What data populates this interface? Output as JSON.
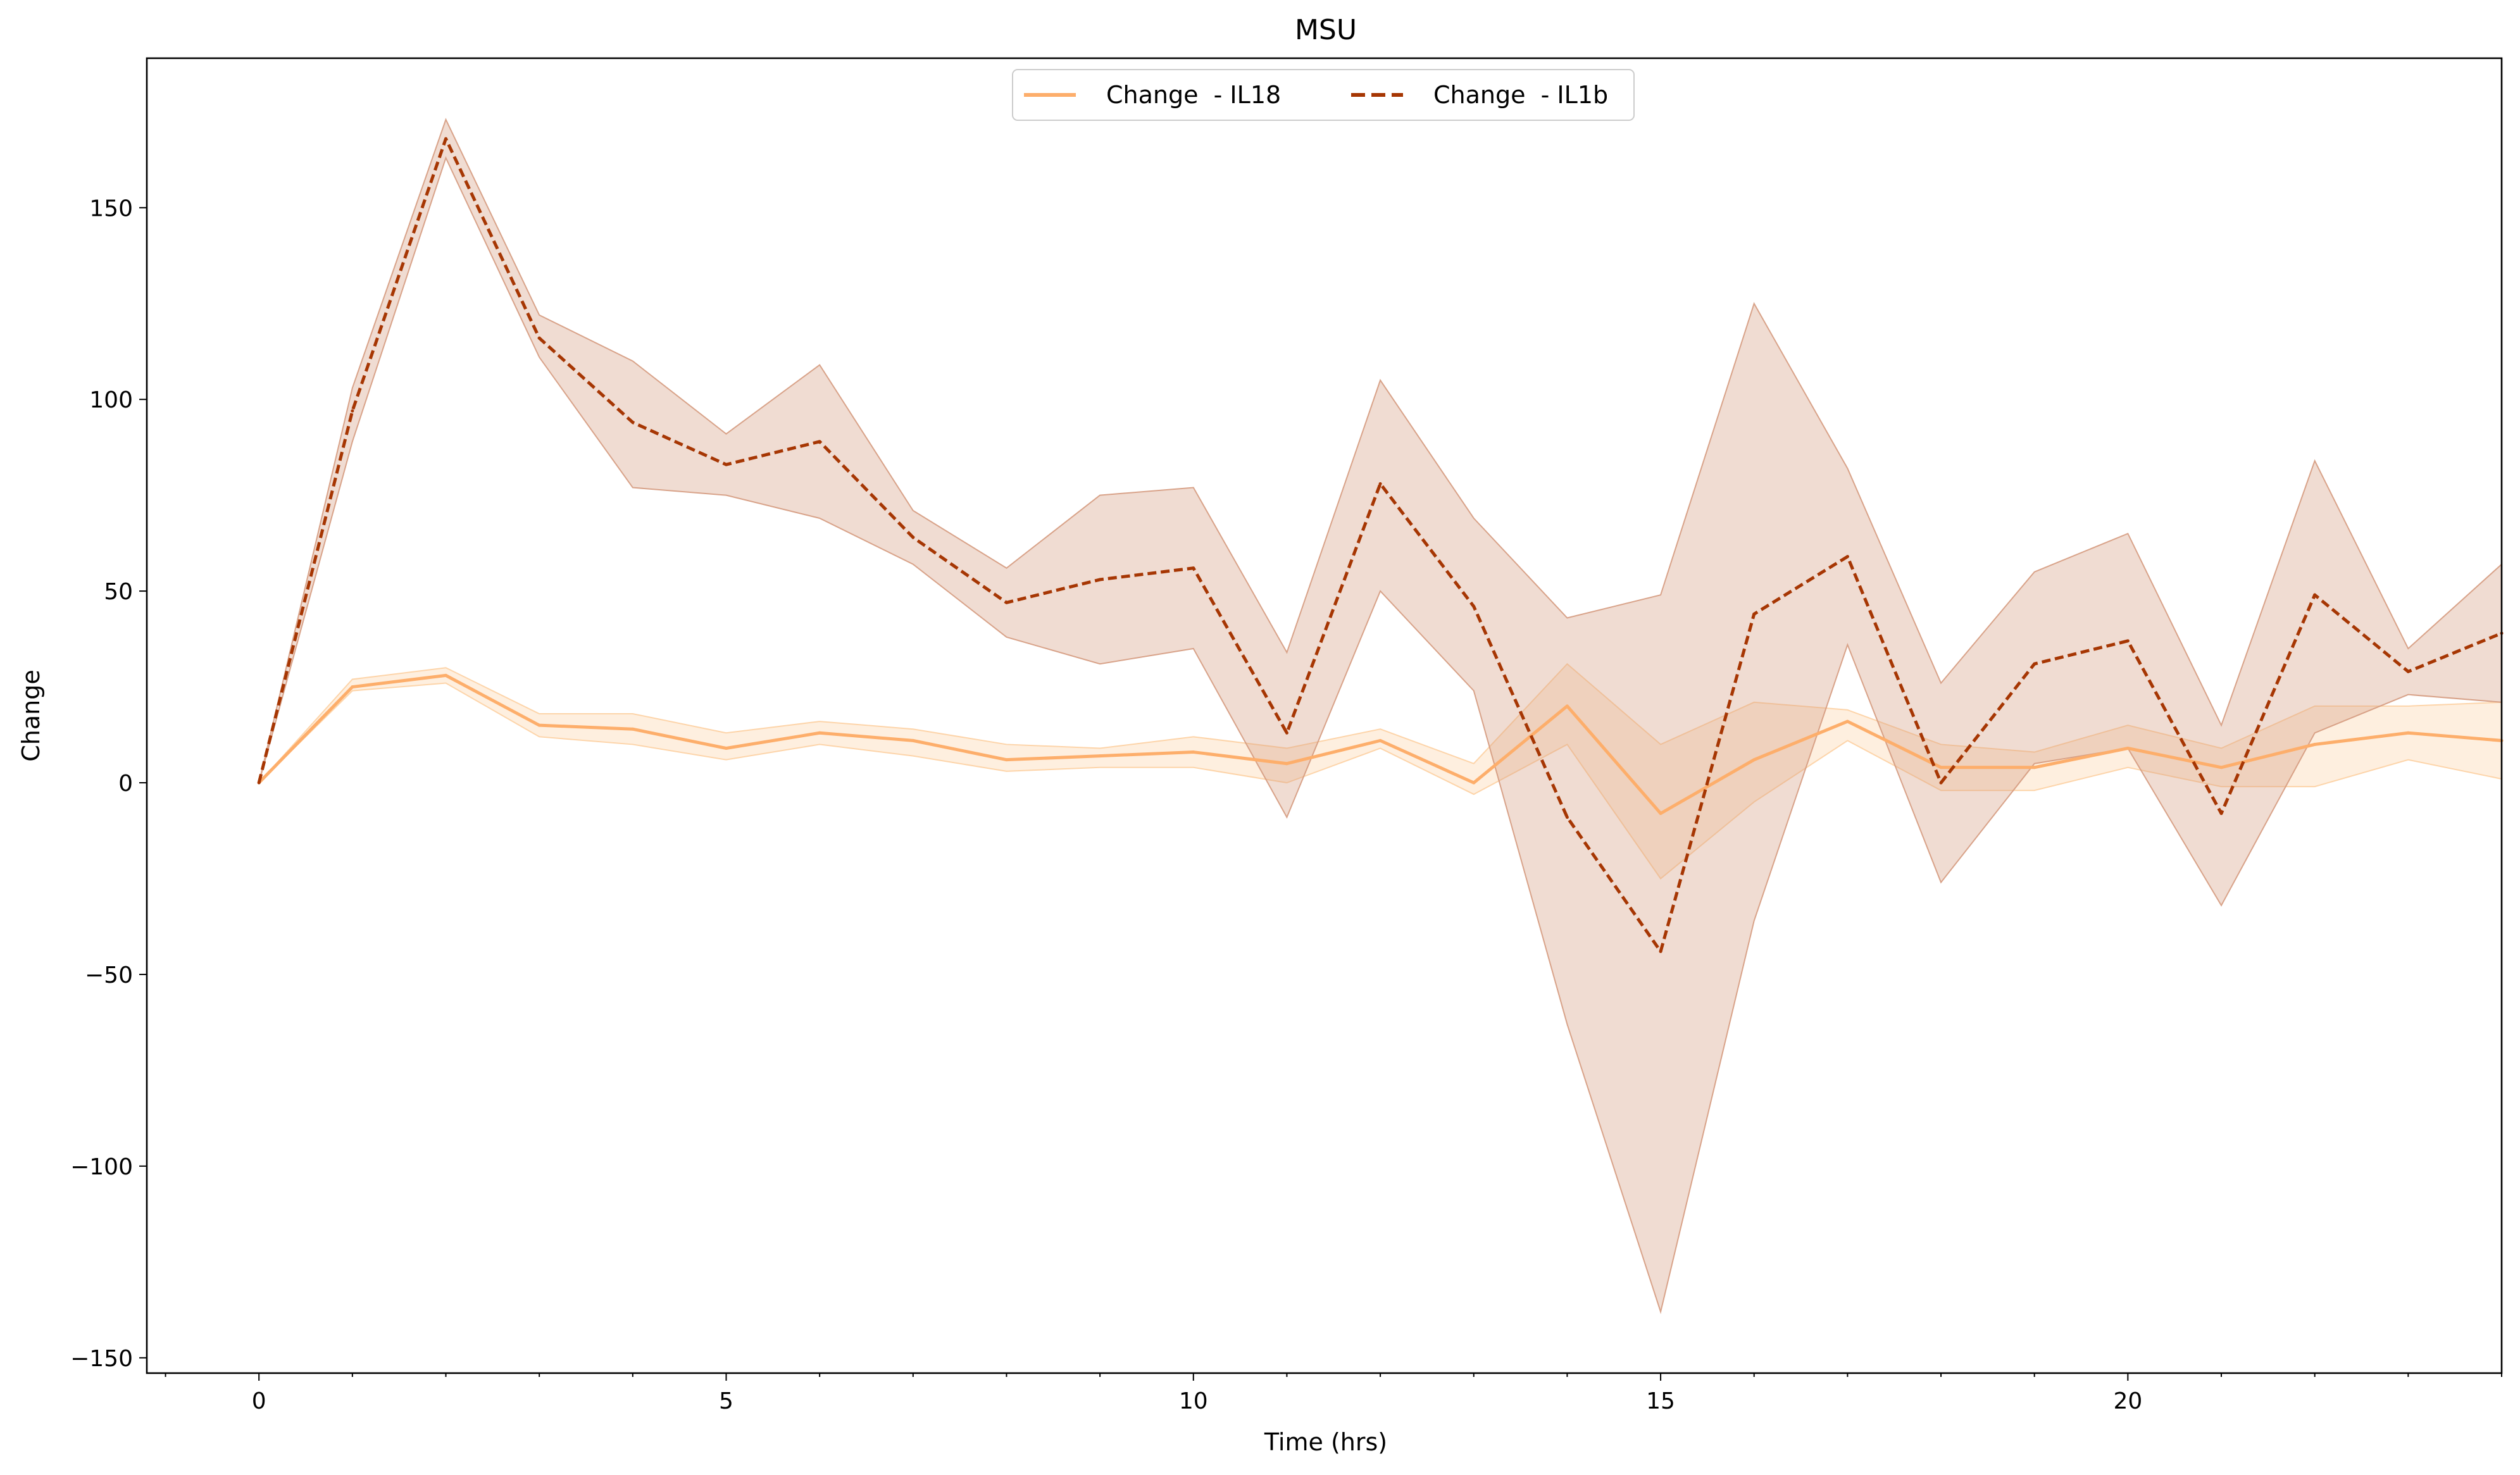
{
  "chart_data": {
    "type": "line",
    "title": "MSU",
    "xlabel": "Time (hrs)",
    "ylabel": "Change",
    "xlim": [
      -1.2,
      24
    ],
    "ylim": [
      -154,
      189
    ],
    "xticks": [
      0,
      5,
      10,
      15,
      20
    ],
    "yticks": [
      -150,
      -100,
      -50,
      0,
      50,
      100,
      150
    ],
    "xtick_labels": [
      "0",
      "5",
      "10",
      "15",
      "20"
    ],
    "ytick_labels": [
      "−150",
      "−100",
      "−50",
      "0",
      "50",
      "100",
      "150"
    ],
    "grid": false,
    "legend_position": "top-center",
    "x": [
      0,
      1,
      2,
      3,
      4,
      5,
      6,
      7,
      8,
      9,
      10,
      11,
      12,
      13,
      14,
      15,
      16,
      17,
      18,
      19,
      20,
      21,
      22,
      23,
      24
    ],
    "series": [
      {
        "name": "Change  - IL18",
        "color": "#fdae6b",
        "band_color": "#fdd0a2",
        "dash": "solid",
        "values": [
          0,
          25,
          28,
          15,
          14,
          9,
          13,
          11,
          6,
          7,
          8,
          5,
          11,
          0,
          20,
          -8,
          6,
          16,
          4,
          4,
          9,
          4,
          10,
          13,
          11
        ],
        "lower": [
          0,
          24,
          26,
          12,
          10,
          6,
          10,
          7,
          3,
          4,
          4,
          0,
          9,
          -3,
          10,
          -25,
          -5,
          11,
          -2,
          -2,
          4,
          -1,
          -1,
          6,
          1
        ],
        "upper": [
          0,
          27,
          30,
          18,
          18,
          13,
          16,
          14,
          10,
          9,
          12,
          9,
          14,
          5,
          31,
          10,
          21,
          19,
          10,
          8,
          15,
          9,
          20,
          20,
          21
        ]
      },
      {
        "name": "Change  - IL1b",
        "color": "#a63603",
        "band_color": "#d59a7e",
        "dash": "dashed",
        "values": [
          0,
          97,
          168,
          116,
          94,
          83,
          89,
          64,
          47,
          53,
          56,
          13,
          78,
          46,
          -9,
          -44,
          44,
          59,
          0,
          31,
          37,
          -8,
          49,
          29,
          39
        ],
        "lower": [
          0,
          89,
          163,
          111,
          77,
          75,
          69,
          57,
          38,
          31,
          35,
          -9,
          50,
          24,
          -63,
          -138,
          -36,
          36,
          -26,
          5,
          9,
          -32,
          13,
          23,
          21
        ],
        "upper": [
          0,
          103,
          173,
          122,
          110,
          91,
          109,
          71,
          56,
          75,
          77,
          34,
          105,
          69,
          43,
          49,
          125,
          82,
          26,
          55,
          65,
          15,
          84,
          35,
          57
        ]
      }
    ]
  }
}
